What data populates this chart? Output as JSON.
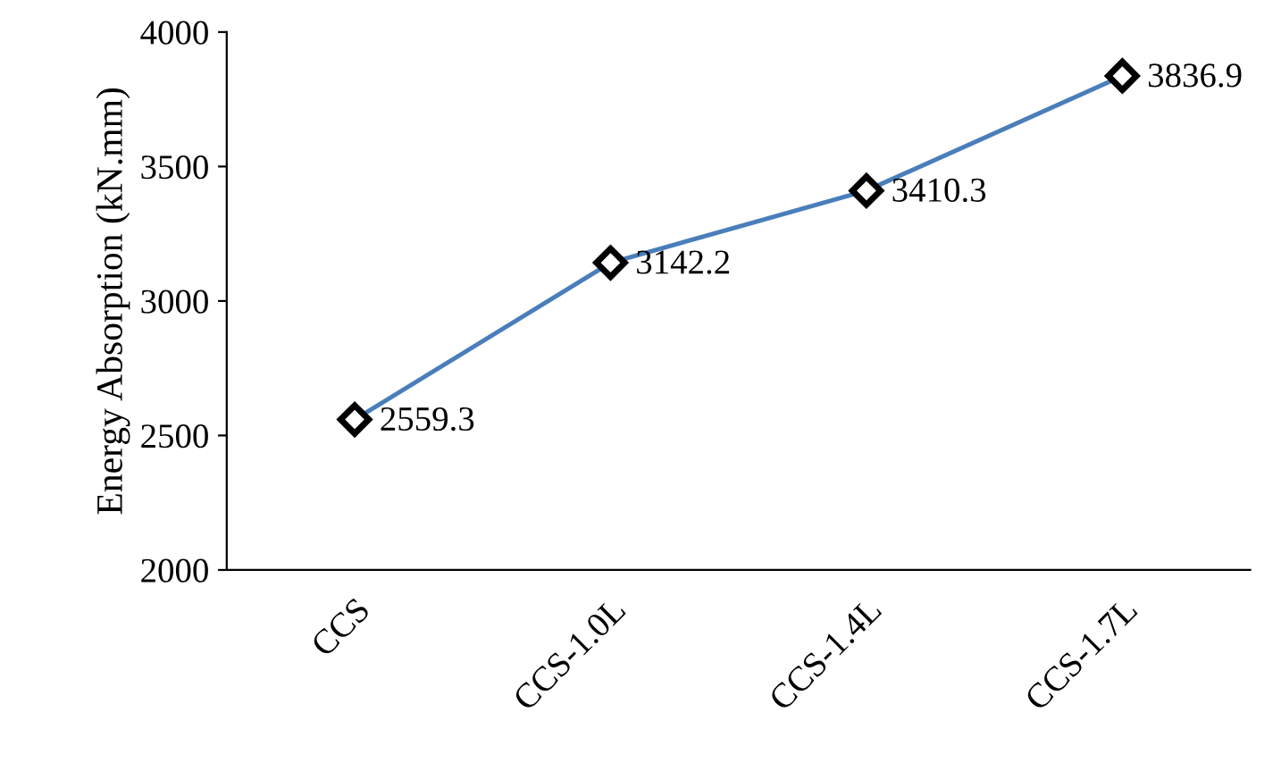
{
  "chart_data": {
    "type": "line",
    "ylabel": "Energy Absorption (kN.mm)",
    "categories": [
      "CCS",
      "CCS-1.0L",
      "CCS-1.4L",
      "CCS-1.7L"
    ],
    "series": [
      {
        "color": "#4a7ebb",
        "values": [
          2559.3,
          3142.2,
          3410.3,
          3836.9
        ]
      }
    ],
    "ylim": [
      2000,
      4000
    ],
    "yticks": [
      2000,
      2500,
      3000,
      3500,
      4000
    ],
    "data_labels": true,
    "marker": "diamond",
    "line_style": "solid",
    "grid": false,
    "legend": false
  }
}
